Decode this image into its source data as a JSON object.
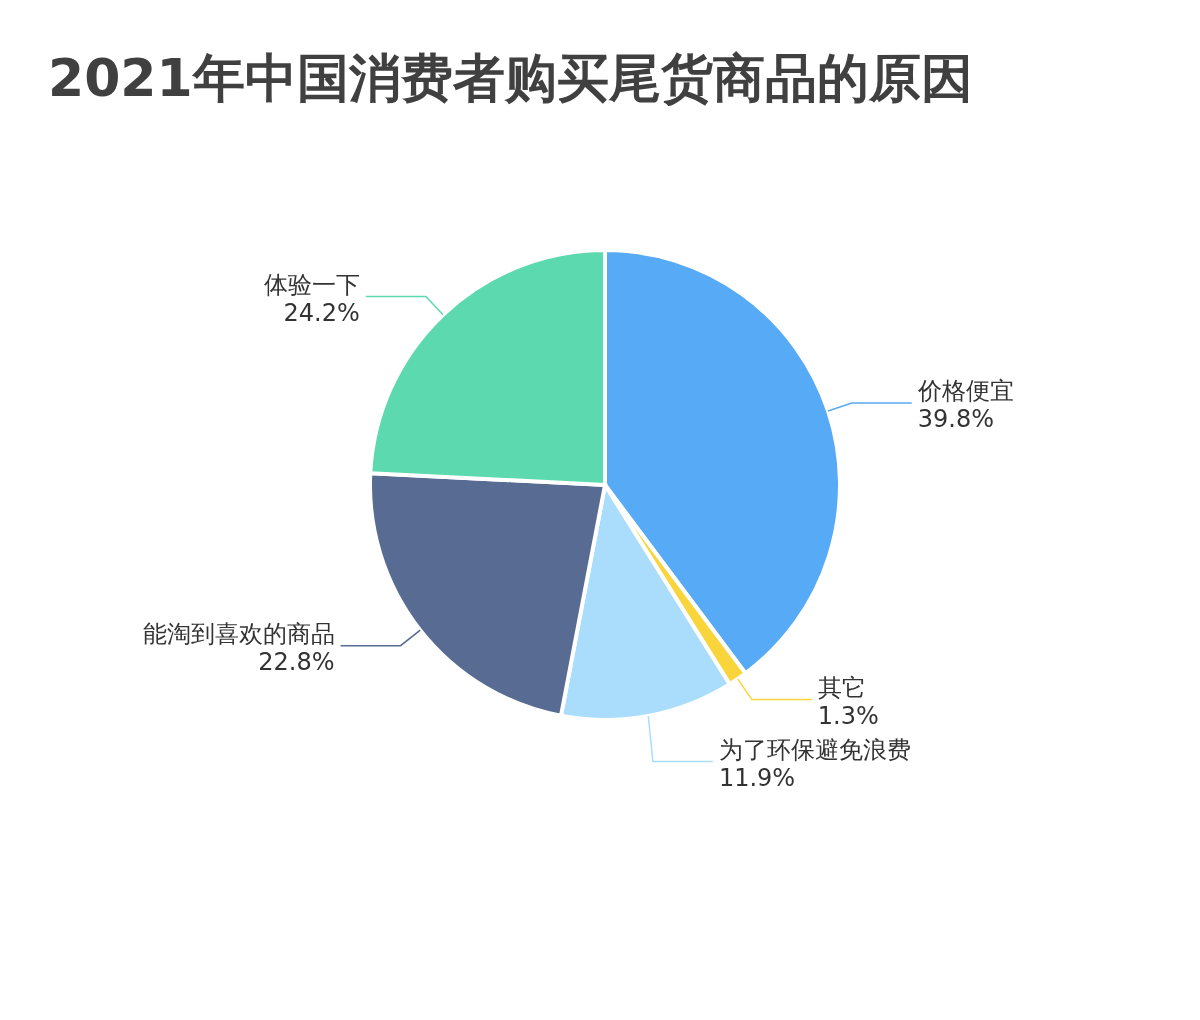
{
  "chart_data": {
    "type": "pie",
    "title": "2021年中国消费者购买尾货商品的原因",
    "categories": [
      "价格便宜",
      "其它",
      "为了环保避免浪费",
      "能淘到喜欢的商品",
      "体验一下"
    ],
    "values": [
      39.8,
      1.3,
      11.9,
      22.8,
      24.2
    ],
    "value_labels": [
      "39.8%",
      "1.3%",
      "11.9%",
      "22.8%",
      "24.2%"
    ],
    "colors": [
      "#57aaf5",
      "#f9d43b",
      "#a9ddfb",
      "#586b93",
      "#5dd9af"
    ],
    "legend": false
  }
}
